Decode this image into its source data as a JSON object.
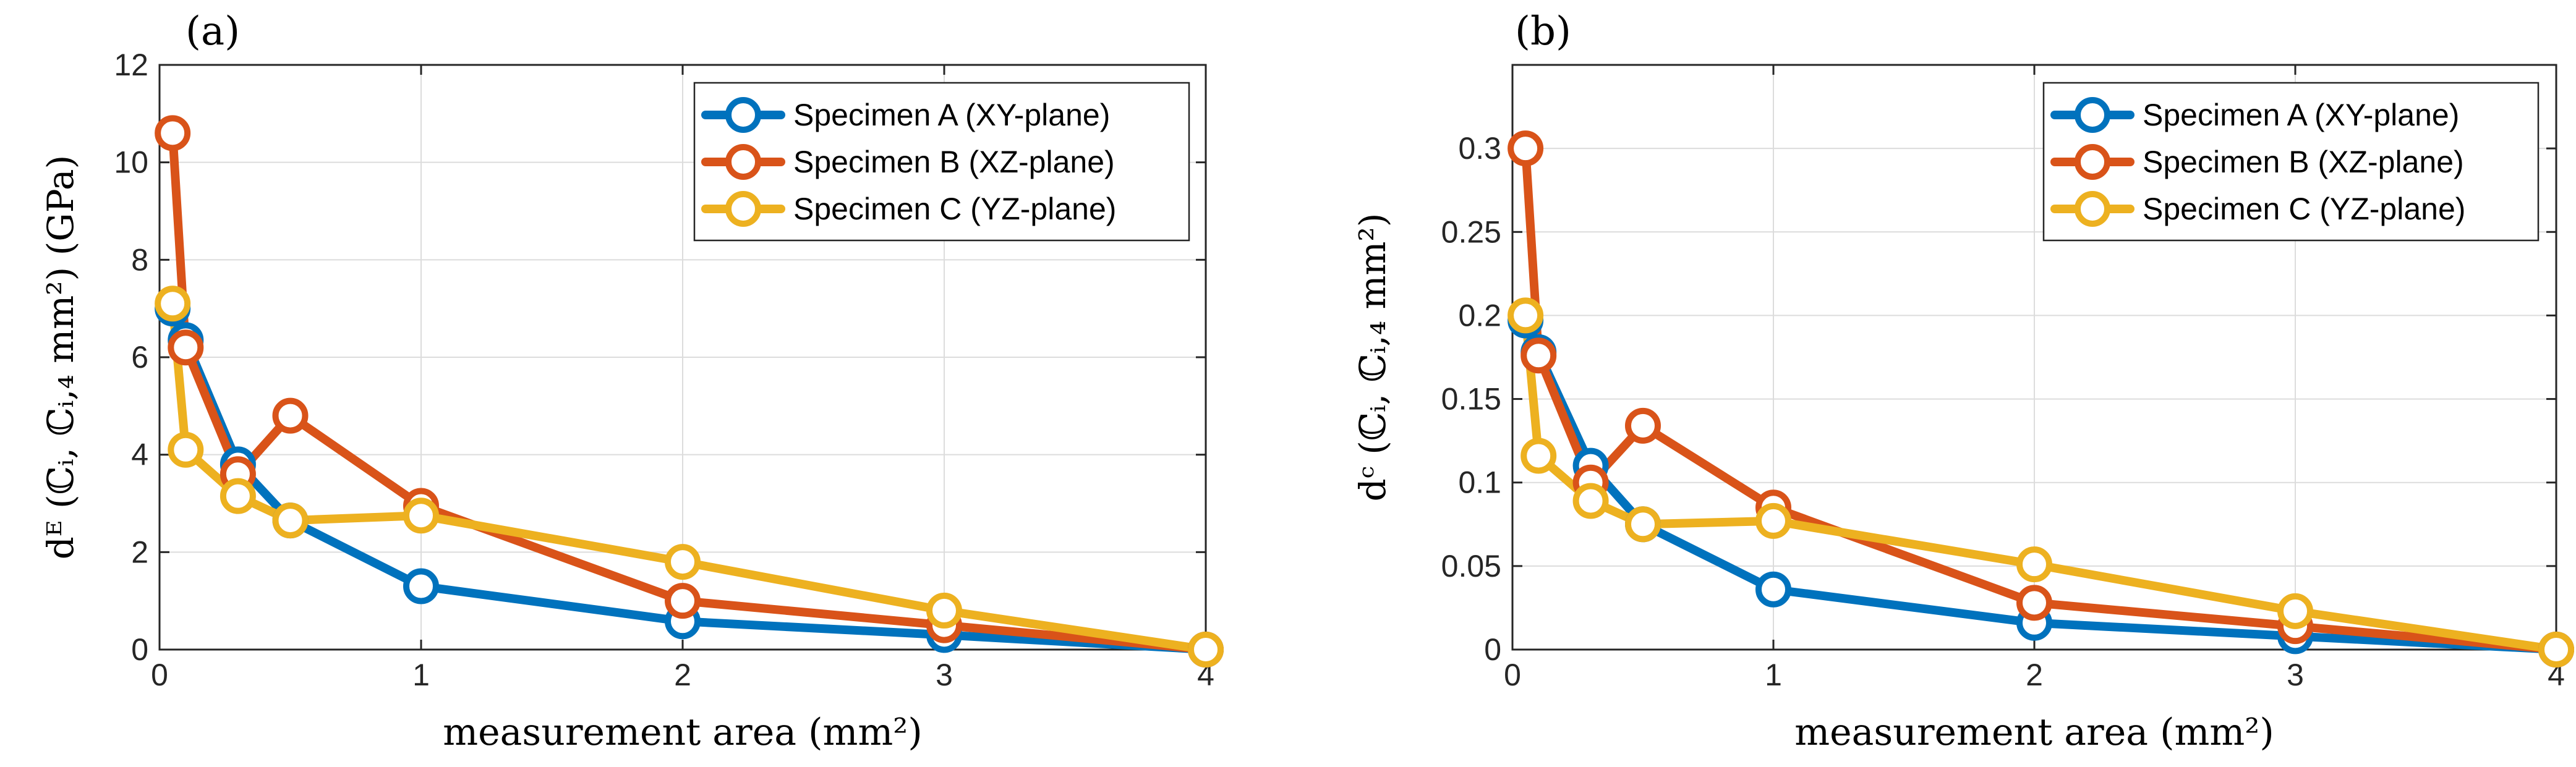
{
  "chart_data": [
    {
      "type": "line",
      "panel_label": "(a)",
      "xlabel": "measurement area (mm²)",
      "ylabel": "dᴱ (ℂᵢ, ℂᵢ,₄ mm²) (GPa)",
      "xlim": [
        0,
        4
      ],
      "ylim": [
        0,
        12
      ],
      "xticks": [
        "0",
        "1",
        "2",
        "3",
        "4"
      ],
      "yticks": [
        "0",
        "2",
        "4",
        "6",
        "8",
        "10",
        "12"
      ],
      "ytick_values": [
        0,
        2,
        4,
        6,
        8,
        10,
        12
      ],
      "grid": true,
      "legend_position": "top-right",
      "series": [
        {
          "name": "Specimen A (XY-plane)",
          "color": "#0072BD",
          "x": [
            0.05,
            0.1,
            0.3,
            0.5,
            1,
            2,
            3,
            4
          ],
          "values": [
            7.0,
            6.35,
            3.8,
            2.65,
            1.3,
            0.58,
            0.3,
            0
          ]
        },
        {
          "name": "Specimen B (XZ-plane)",
          "color": "#D95319",
          "x": [
            0.05,
            0.1,
            0.3,
            0.5,
            1,
            2,
            3,
            4
          ],
          "values": [
            10.6,
            6.2,
            3.6,
            4.8,
            2.95,
            1.0,
            0.5,
            0
          ]
        },
        {
          "name": "Specimen C (YZ-plane)",
          "color": "#EDB120",
          "x": [
            0.05,
            0.1,
            0.3,
            0.5,
            1,
            2,
            3,
            4
          ],
          "values": [
            7.1,
            4.1,
            3.15,
            2.65,
            2.75,
            1.8,
            0.8,
            0
          ]
        }
      ]
    },
    {
      "type": "line",
      "panel_label": "(b)",
      "xlabel": "measurement area (mm²)",
      "ylabel": "dᶜ (ℂᵢ, ℂᵢ,₄ mm²)",
      "xlim": [
        0,
        4
      ],
      "ylim": [
        0,
        0.35
      ],
      "xticks": [
        "0",
        "1",
        "2",
        "3",
        "4"
      ],
      "yticks": [
        "0",
        "0.05",
        "0.1",
        "0.15",
        "0.2",
        "0.25",
        "0.3"
      ],
      "ytick_values": [
        0,
        0.05,
        0.1,
        0.15,
        0.2,
        0.25,
        0.3
      ],
      "grid": true,
      "legend_position": "top-right",
      "series": [
        {
          "name": "Specimen A (XY-plane)",
          "color": "#0072BD",
          "x": [
            0.05,
            0.1,
            0.3,
            0.5,
            1,
            2,
            3,
            4
          ],
          "values": [
            0.197,
            0.178,
            0.11,
            0.075,
            0.036,
            0.016,
            0.008,
            0
          ]
        },
        {
          "name": "Specimen B (XZ-plane)",
          "color": "#D95319",
          "x": [
            0.05,
            0.1,
            0.3,
            0.5,
            1,
            2,
            3,
            4
          ],
          "values": [
            0.3,
            0.176,
            0.1,
            0.134,
            0.085,
            0.028,
            0.014,
            0
          ]
        },
        {
          "name": "Specimen C (YZ-plane)",
          "color": "#EDB120",
          "x": [
            0.05,
            0.1,
            0.3,
            0.5,
            1,
            2,
            3,
            4
          ],
          "values": [
            0.2,
            0.116,
            0.089,
            0.075,
            0.077,
            0.051,
            0.023,
            0
          ]
        }
      ]
    }
  ]
}
